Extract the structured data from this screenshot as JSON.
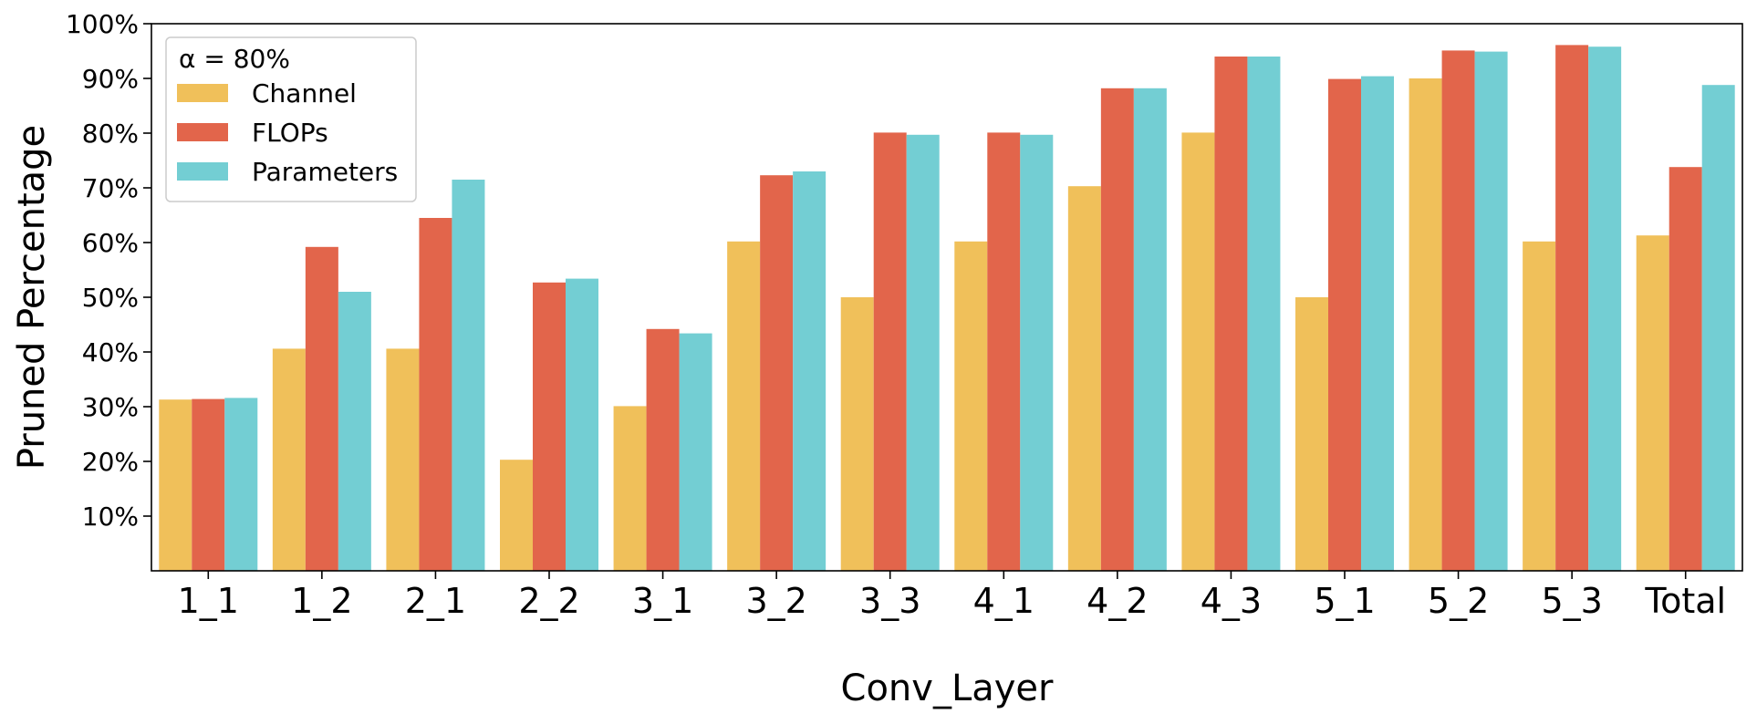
{
  "chart_data": {
    "type": "bar",
    "title": "",
    "xlabel": "Conv_Layer",
    "ylabel": "Pruned Percentage",
    "ylim": [
      0,
      100
    ],
    "y_ticks": [
      {
        "value": 10,
        "label": "10%"
      },
      {
        "value": 20,
        "label": "20%"
      },
      {
        "value": 30,
        "label": "30%"
      },
      {
        "value": 40,
        "label": "40%"
      },
      {
        "value": 50,
        "label": "50%"
      },
      {
        "value": 60,
        "label": "60%"
      },
      {
        "value": 70,
        "label": "70%"
      },
      {
        "value": 80,
        "label": "80%"
      },
      {
        "value": 90,
        "label": "90%"
      },
      {
        "value": 100,
        "label": "100%"
      }
    ],
    "grid": false,
    "legend": {
      "title": "α = 80%",
      "placement": "top-left"
    },
    "categories": [
      "1_1",
      "1_2",
      "2_1",
      "2_2",
      "3_1",
      "3_2",
      "3_3",
      "4_1",
      "4_2",
      "4_3",
      "5_1",
      "5_2",
      "5_3",
      "Total"
    ],
    "series": [
      {
        "name": "Channel",
        "color": "#f0c05a",
        "values": [
          31.3,
          40.6,
          40.6,
          20.3,
          30.1,
          60.2,
          50.0,
          60.2,
          70.3,
          80.1,
          50.0,
          90.0,
          60.2,
          61.3
        ]
      },
      {
        "name": "FLOPs",
        "color": "#e2654b",
        "values": [
          31.4,
          59.2,
          64.5,
          52.7,
          44.2,
          72.3,
          80.1,
          80.1,
          88.2,
          94.0,
          89.9,
          95.1,
          96.1,
          73.8
        ]
      },
      {
        "name": "Parameters",
        "color": "#73ced3",
        "values": [
          31.6,
          51.0,
          71.5,
          53.4,
          43.4,
          73.0,
          79.7,
          79.7,
          88.2,
          94.0,
          90.4,
          94.9,
          95.8,
          88.8
        ]
      }
    ]
  }
}
